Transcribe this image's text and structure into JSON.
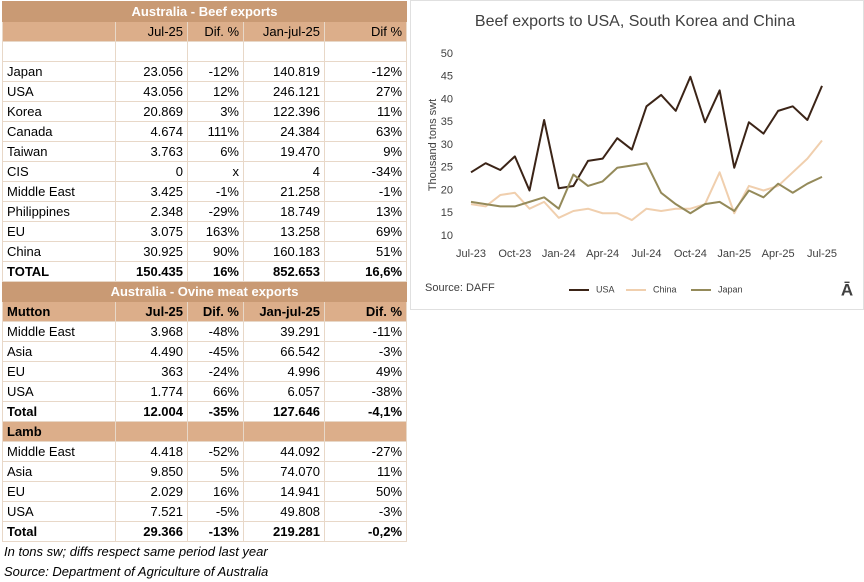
{
  "beef_table": {
    "title": "Australia - Beef exports",
    "columns": [
      "Jul-25",
      "Dif. %",
      "Jan-jul-25",
      "Dif %"
    ],
    "rows": [
      [
        "Japan",
        "23.056",
        "-12%",
        "140.819",
        "-12%"
      ],
      [
        "USA",
        "43.056",
        "12%",
        "246.121",
        "27%"
      ],
      [
        "Korea",
        "20.869",
        "3%",
        "122.396",
        "11%"
      ],
      [
        "Canada",
        "4.674",
        "111%",
        "24.384",
        "63%"
      ],
      [
        "Taiwan",
        "3.763",
        "6%",
        "19.470",
        "9%"
      ],
      [
        "CIS",
        "0",
        "x",
        "4",
        "-34%"
      ],
      [
        "Middle East",
        "3.425",
        "-1%",
        "21.258",
        "-1%"
      ],
      [
        "Philippines",
        "2.348",
        "-29%",
        "18.749",
        "13%"
      ],
      [
        "EU",
        "3.075",
        "163%",
        "13.258",
        "69%"
      ],
      [
        "China",
        "30.925",
        "90%",
        "160.183",
        "51%"
      ]
    ],
    "total": [
      "TOTAL",
      "150.435",
      "16%",
      "852.653",
      "16,6%"
    ]
  },
  "ovine_table": {
    "title": "Australia - Ovine meat exports",
    "sections": [
      {
        "columns": [
          "Mutton",
          "Jul-25",
          "Dif. %",
          "Jan-jul-25",
          "Dif. %"
        ],
        "rows": [
          [
            "Middle East",
            "3.968",
            "-48%",
            "39.291",
            "-11%"
          ],
          [
            "Asia",
            "4.490",
            "-45%",
            "66.542",
            "-3%"
          ],
          [
            "EU",
            "363",
            "-24%",
            "4.996",
            "49%"
          ],
          [
            "USA",
            "1.774",
            "66%",
            "6.057",
            "-38%"
          ]
        ],
        "total": [
          "Total",
          "12.004",
          "-35%",
          "127.646",
          "-4,1%"
        ]
      },
      {
        "columns": [
          "Lamb"
        ],
        "rows": [
          [
            "Middle East",
            "4.418",
            "-52%",
            "44.092",
            "-27%"
          ],
          [
            "Asia",
            "9.850",
            "5%",
            "74.070",
            "11%"
          ],
          [
            "EU",
            "2.029",
            "16%",
            "14.941",
            "50%"
          ],
          [
            "USA",
            "7.521",
            "-5%",
            "49.808",
            "-3%"
          ]
        ],
        "total": [
          "Total",
          "29.366",
          "-13%",
          "219.281",
          "-0,2%"
        ]
      }
    ]
  },
  "footnotes": [
    "In tons sw; diffs respect same period last year",
    "Source: Department of Agriculture of Australia"
  ],
  "chart_data": {
    "type": "line",
    "title": "Beef exports to USA, South Korea and China",
    "y_label": "Thousand tons swt",
    "source": "Source:  DAFF",
    "logo": "Ā",
    "categories": [
      "Jul-23",
      null,
      null,
      "Oct-23",
      null,
      null,
      "Jan-24",
      null,
      null,
      "Apr-24",
      null,
      null,
      "Jul-24",
      null,
      null,
      "Oct-24",
      null,
      null,
      "Jan-25",
      null,
      null,
      "Apr-25",
      null,
      null,
      "Jul-25"
    ],
    "series": [
      {
        "name": "USA",
        "color": "#3b2417",
        "values": [
          24,
          26,
          24.5,
          27.5,
          20,
          35.5,
          20.5,
          21,
          26.5,
          27,
          31.5,
          29,
          38.5,
          41,
          37.5,
          45,
          35,
          42,
          25,
          35,
          32.5,
          37.5,
          38.5,
          35.5,
          43
        ]
      },
      {
        "name": "China",
        "color": "#f0cfae",
        "values": [
          17,
          16.5,
          19,
          19.5,
          16,
          17.5,
          14,
          15.5,
          16,
          15,
          15,
          13.5,
          16,
          15.5,
          16,
          16,
          17,
          24,
          15,
          21,
          20,
          21,
          24,
          27,
          31
        ]
      },
      {
        "name": "Japan",
        "color": "#948a5a",
        "values": [
          17.5,
          17,
          16.5,
          16.5,
          17.5,
          18.5,
          16,
          23.5,
          21,
          22,
          25,
          25.5,
          26,
          19.5,
          17,
          15,
          17,
          17.5,
          15.5,
          20,
          18.5,
          21.5,
          19.5,
          21.5,
          23
        ]
      }
    ],
    "ylim": [
      10,
      50
    ],
    "yticks": [
      10,
      15,
      20,
      25,
      30,
      35,
      40,
      45,
      50
    ],
    "grid": false,
    "legend": "bottom"
  }
}
